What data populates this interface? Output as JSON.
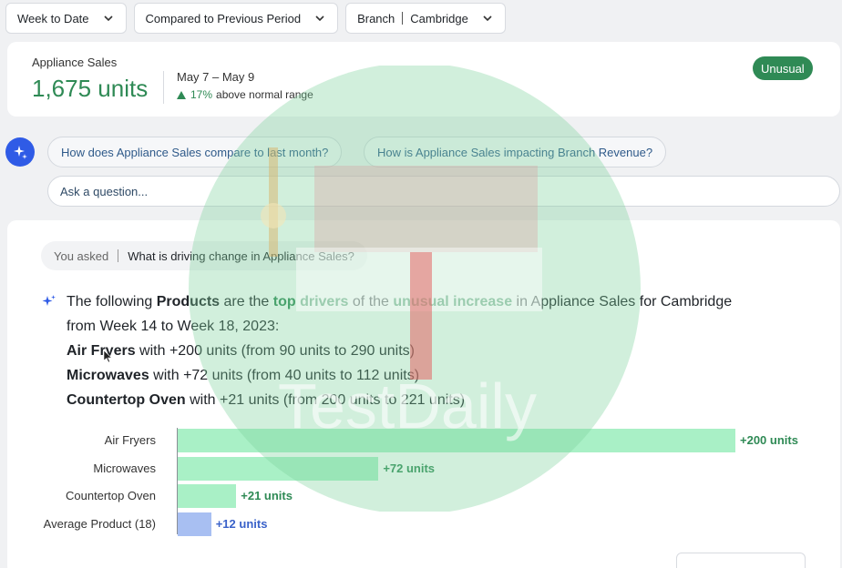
{
  "filters": {
    "period": "Week to Date",
    "comparison": "Compared to Previous Period",
    "branch_label": "Branch",
    "branch_value": "Cambridge"
  },
  "kpi": {
    "name": "Appliance Sales",
    "value": "1,675 units",
    "period": "May 7 – May 9",
    "change_pct": "17%",
    "change_text": "above normal range",
    "badge": "Unusual"
  },
  "suggestions": [
    "How does Appliance Sales compare to last month?",
    "How is Appliance Sales impacting Branch Revenue?"
  ],
  "ask_placeholder": "Ask a question...",
  "answer": {
    "you_asked_label": "You asked",
    "question": "What is driving change in Appliance Sales?",
    "intro_1": "The following ",
    "intro_products": "Products",
    "intro_2": " are the ",
    "intro_top_drivers": "top drivers",
    "intro_3": " of the ",
    "intro_unusual": "unusual increase",
    "intro_4": " in Appliance Sales for Cambridge",
    "intro_5": "from Week 14 to Week 18, 2023:",
    "drivers": [
      {
        "name": "Air Fryers",
        "detail": " with +200 units (from 90 units to 290 units)"
      },
      {
        "name": "Microwaves",
        "detail": " with +72 units (from 40 units to 112 units)"
      },
      {
        "name": "Countertop Oven",
        "detail": " with +21 units (from 200 units to 221 units)"
      }
    ]
  },
  "chart_data": {
    "type": "bar",
    "orientation": "horizontal",
    "categories": [
      "Air Fryers",
      "Microwaves",
      "Countertop Oven",
      "Average Product (18)"
    ],
    "values": [
      200,
      72,
      21,
      12
    ],
    "value_labels": [
      "+200 units",
      "+72 units",
      "+21 units",
      "+12 units"
    ],
    "colors": [
      "#a9f0c6",
      "#a9f0c6",
      "#a9f0c6",
      "#a8bff2"
    ],
    "label_colors": [
      "#2f8a55",
      "#2f8a55",
      "#2f8a55",
      "#3a62c9"
    ],
    "xlim": [
      0,
      200
    ]
  },
  "watermark": {
    "text": "TestDaily"
  },
  "colors": {
    "accent_green": "#2f8a55",
    "accent_blue": "#2f5be6"
  }
}
